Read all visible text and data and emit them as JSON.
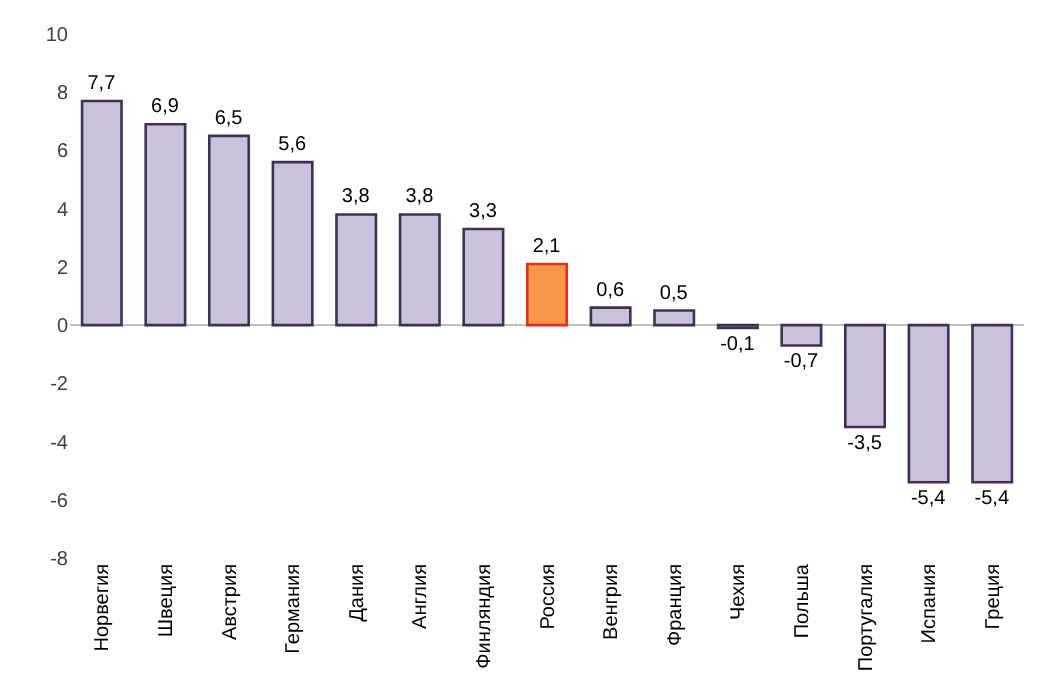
{
  "chart_data": {
    "type": "bar",
    "categories": [
      "Норвегия",
      "Швеция",
      "Австрия",
      "Германия",
      "Дания",
      "Англия",
      "Финляндия",
      "Россия",
      "Венгрия",
      "Франция",
      "Чехия",
      "Польша",
      "Португалия",
      "Испания",
      "Греция"
    ],
    "values": [
      7.7,
      6.9,
      6.5,
      5.6,
      3.8,
      3.8,
      3.3,
      2.1,
      0.6,
      0.5,
      -0.1,
      -0.7,
      -3.5,
      -5.4,
      -5.4
    ],
    "value_labels": [
      "7,7",
      "6,9",
      "6,5",
      "5,6",
      "3,8",
      "3,8",
      "3,3",
      "2,1",
      "0,6",
      "0,5",
      "-0,1",
      "-0,7",
      "-3,5",
      "-5,4",
      "-5,4"
    ],
    "colors": [
      "#ccc1da",
      "#ccc1da",
      "#ccc1da",
      "#ccc1da",
      "#ccc1da",
      "#ccc1da",
      "#ccc1da",
      "#f79646",
      "#ccc1da",
      "#ccc1da",
      "#ccc1da",
      "#ccc1da",
      "#ccc1da",
      "#ccc1da",
      "#ccc1da"
    ],
    "ylim": [
      -8,
      10
    ],
    "yticks": [
      -8,
      -6,
      -4,
      -2,
      0,
      2,
      4,
      6,
      8,
      10
    ]
  }
}
